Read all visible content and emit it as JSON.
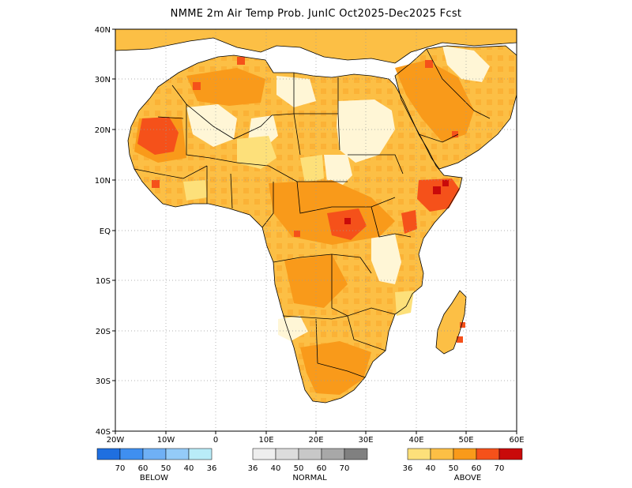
{
  "title": "NMME 2m Air Temp Prob. JunIC  Oct2025-Dec2025 Fcst",
  "map": {
    "lon_min": -20,
    "lon_max": 60,
    "lat_min": -40,
    "lat_max": 40,
    "lat_labels": [
      "40N",
      "30N",
      "20N",
      "10N",
      "EQ",
      "10S",
      "20S",
      "30S",
      "40S"
    ],
    "lon_labels": [
      "20W",
      "10W",
      "0",
      "10E",
      "20E",
      "30E",
      "40E",
      "50E",
      "60E"
    ]
  },
  "legend": {
    "below": {
      "title": "BELOW",
      "colors": [
        "#1f6fe0",
        "#3f8ff0",
        "#6fb0f5",
        "#94cbf8",
        "#b9ecf8"
      ],
      "labels": [
        "70",
        "60",
        "50",
        "40",
        "36"
      ]
    },
    "normal": {
      "title": "NORMAL",
      "colors": [
        "#eeeeee",
        "#dcdcdc",
        "#c8c8c8",
        "#a8a8a8",
        "#808080"
      ],
      "labels": [
        "36",
        "40",
        "50",
        "60",
        "70"
      ]
    },
    "above": {
      "title": "ABOVE",
      "colors": [
        "#fde07a",
        "#fcbf45",
        "#f99a1a",
        "#f5511a",
        "#c90a0a"
      ],
      "labels": [
        "36",
        "40",
        "50",
        "60",
        "70"
      ]
    }
  }
}
